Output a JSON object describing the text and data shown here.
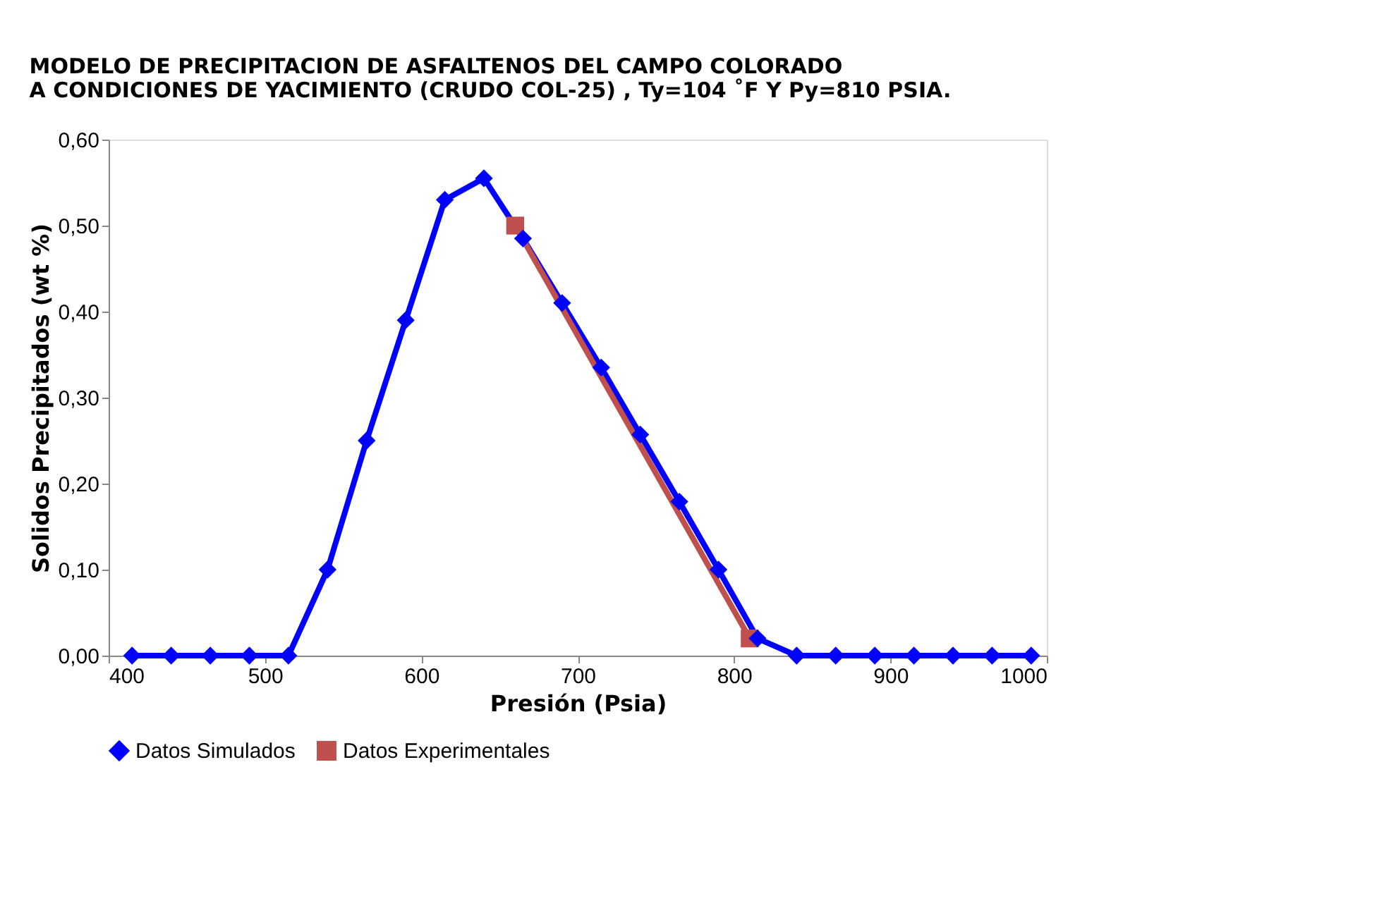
{
  "chart_data": {
    "type": "line",
    "title": [
      "MODELO DE PRECIPITACION DE ASFALTENOS DEL CAMPO  COLORADO",
      "A CONDICIONES DE YACIMIENTO (CRUDO COL-25) , Ty=104 ˚F Y Py=810 PSIA."
    ],
    "xlabel": "Presión (Psia)",
    "ylabel": "Solidos Precipitados (wt %)",
    "xlim": [
      400,
      1000
    ],
    "xticks": [
      400,
      500,
      600,
      700,
      800,
      900,
      1000
    ],
    "ylim": [
      0,
      0.6
    ],
    "yticks": [
      {
        "value": 0,
        "label": "0,00"
      },
      {
        "value": 0.1,
        "label": "0,10"
      },
      {
        "value": 0.2,
        "label": "0,20"
      },
      {
        "value": 0.3,
        "label": "0,30"
      },
      {
        "value": 0.4,
        "label": "0,40"
      },
      {
        "value": 0.5,
        "label": "0,50"
      },
      {
        "value": 0.6,
        "label": "0,60"
      }
    ],
    "grid": false,
    "legend": "bottom",
    "line_style": "solid",
    "series": [
      {
        "name": "Datos Simulados",
        "color": "#0000ff",
        "marker": "diamond",
        "x": [
          415,
          440,
          465,
          490,
          515,
          540,
          565,
          590,
          615,
          640,
          665,
          690,
          715,
          740,
          765,
          790,
          815,
          840,
          865,
          890,
          915,
          940,
          965,
          990
        ],
        "values": [
          0,
          0,
          0,
          0,
          0,
          0.1,
          0.25,
          0.39,
          0.53,
          0.555,
          0.485,
          0.41,
          0.335,
          0.257,
          0.179,
          0.1,
          0.02,
          0,
          0,
          0,
          0,
          0,
          0,
          0
        ]
      },
      {
        "name": "Datos Experimentales",
        "color": "#c0504d",
        "marker": "square",
        "x": [
          660,
          810
        ],
        "values": [
          0.5,
          0.02
        ]
      }
    ]
  }
}
